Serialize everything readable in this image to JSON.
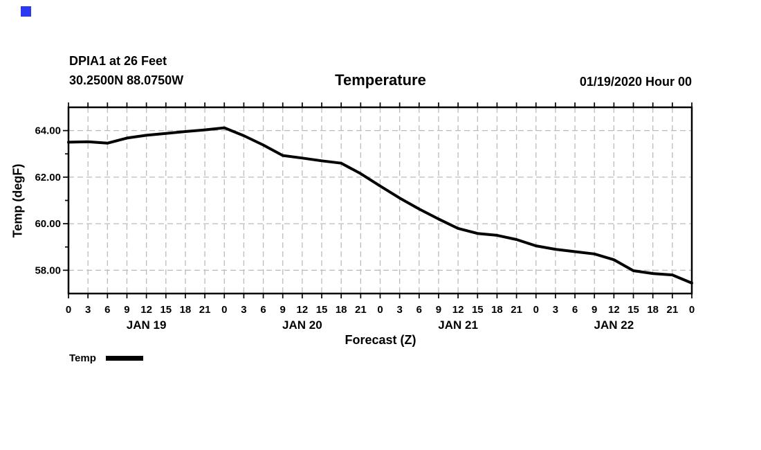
{
  "marker": {
    "color": "#2b3af0"
  },
  "header": {
    "station_line1": "DPIA1 at 26 Feet",
    "station_line2": "30.2500N 88.0750W",
    "title": "Temperature",
    "run_info": "01/19/2020 Hour 00"
  },
  "legend": {
    "label": "Temp",
    "line_color": "#000000"
  },
  "chart_data": {
    "type": "line",
    "title": "Temperature",
    "xlabel": "Forecast (Z)",
    "ylabel": "Temp (degF)",
    "x_total_hours": 96,
    "x_tick_step_hours": 3,
    "x_hour_label_cycle": [
      "0",
      "3",
      "6",
      "9",
      "12",
      "15",
      "18",
      "21"
    ],
    "x_final_label": "0",
    "days": [
      "JAN 19",
      "JAN 20",
      "JAN 21",
      "JAN 22"
    ],
    "ylim": [
      57,
      65
    ],
    "y_grid_values": [
      58,
      60,
      62,
      64
    ],
    "y_tick_labels": [
      "58.00",
      "60.00",
      "62.00",
      "64.00"
    ],
    "y_minor_ticks": [
      59,
      61,
      63
    ],
    "grid": true,
    "grid_color": "#bbbbbb",
    "legend_position": "bottom-left",
    "series": [
      {
        "name": "Temp",
        "color": "#000000",
        "start_hour": 0,
        "step_hours": 3,
        "values": [
          63.5,
          63.52,
          63.46,
          63.68,
          63.8,
          63.88,
          63.96,
          64.03,
          64.12,
          63.78,
          63.38,
          62.93,
          62.82,
          62.7,
          62.6,
          62.15,
          61.62,
          61.1,
          60.63,
          60.2,
          59.8,
          59.58,
          59.5,
          59.32,
          59.05,
          58.9,
          58.8,
          58.7,
          58.45,
          57.98,
          57.86,
          57.8,
          57.45
        ]
      }
    ]
  }
}
